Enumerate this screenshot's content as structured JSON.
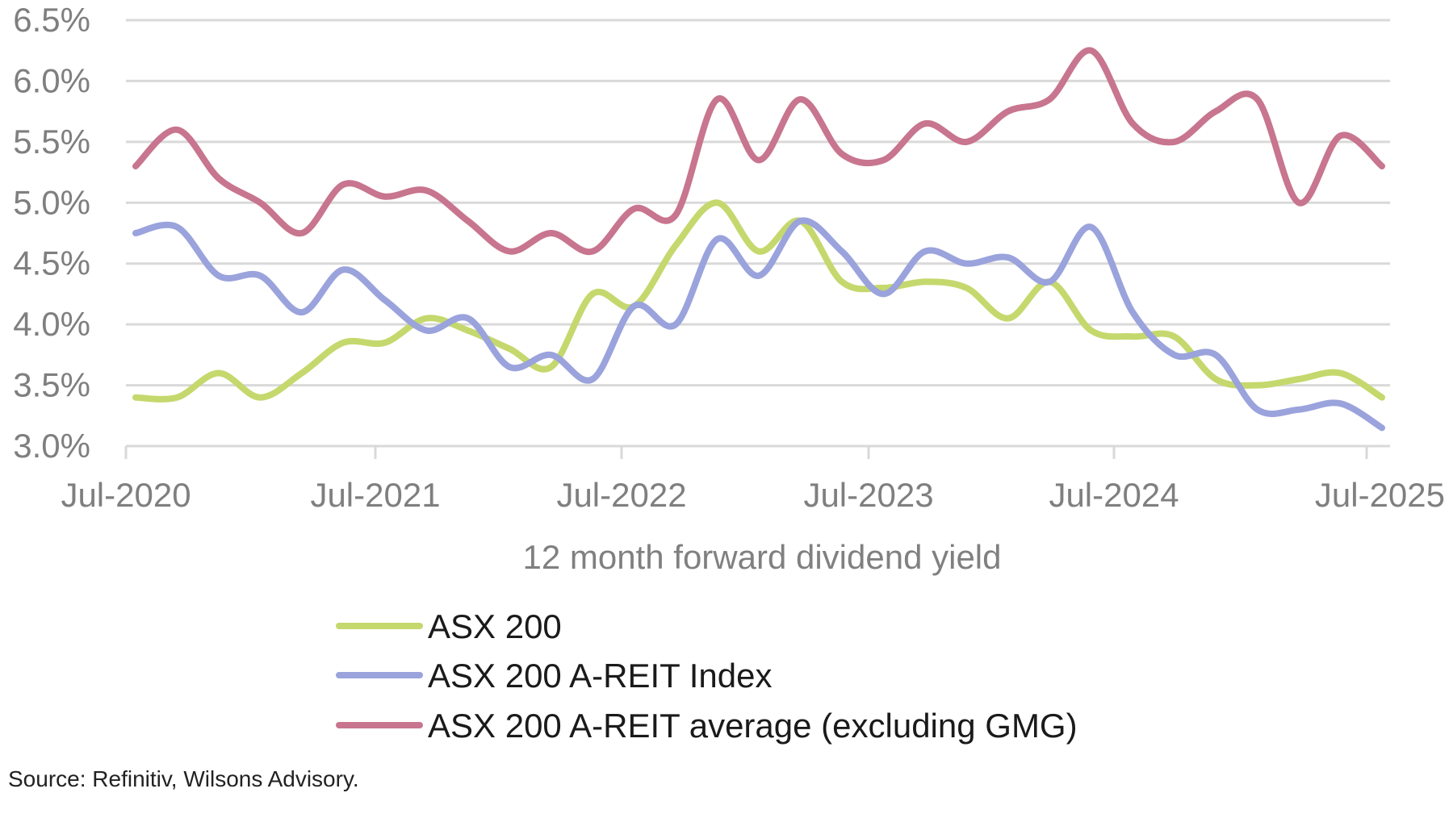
{
  "chart_data": {
    "type": "line",
    "xlabel": "12 month forward dividend yield",
    "ylabel": "",
    "ylim": [
      3.0,
      6.5
    ],
    "y_ticks": [
      {
        "value": 3.0,
        "label": "3.0%"
      },
      {
        "value": 3.5,
        "label": "3.5%"
      },
      {
        "value": 4.0,
        "label": "4.0%"
      },
      {
        "value": 4.5,
        "label": "4.5%"
      },
      {
        "value": 5.0,
        "label": "5.0%"
      },
      {
        "value": 5.5,
        "label": "5.5%"
      },
      {
        "value": 6.0,
        "label": "6.0%"
      },
      {
        "value": 6.5,
        "label": "6.5%"
      }
    ],
    "x_ticks": [
      "Jul-2020",
      "Jul-2021",
      "Jul-2022",
      "Jul-2023",
      "Jul-2024",
      "Jul-2025"
    ],
    "grid": true,
    "legend_position": "bottom",
    "source": "Source: Refinitiv, Wilsons Advisory.",
    "x": [
      "Jul-2020",
      "Sep-2020",
      "Nov-2020",
      "Jan-2021",
      "Mar-2021",
      "May-2021",
      "Jul-2021",
      "Sep-2021",
      "Nov-2021",
      "Jan-2022",
      "Mar-2022",
      "May-2022",
      "Jul-2022",
      "Sep-2022",
      "Nov-2022",
      "Jan-2023",
      "Mar-2023",
      "May-2023",
      "Jul-2023",
      "Sep-2023",
      "Nov-2023",
      "Jan-2024",
      "Mar-2024",
      "May-2024",
      "Jul-2024",
      "Sep-2024",
      "Nov-2024",
      "Jan-2025",
      "Mar-2025",
      "May-2025",
      "Jul-2025"
    ],
    "series": [
      {
        "name": "ASX 200",
        "color": "#c5d86d",
        "values": [
          3.4,
          3.4,
          3.6,
          3.4,
          3.6,
          3.85,
          3.85,
          4.05,
          3.95,
          3.8,
          3.65,
          4.25,
          4.15,
          4.65,
          5.0,
          4.6,
          4.85,
          4.35,
          4.3,
          4.35,
          4.3,
          4.05,
          4.35,
          3.95,
          3.9,
          3.9,
          3.55,
          3.5,
          3.55,
          3.6,
          3.4
        ]
      },
      {
        "name": "ASX 200 A-REIT Index",
        "color": "#9aa3dc",
        "values": [
          4.75,
          4.8,
          4.4,
          4.4,
          4.1,
          4.45,
          4.2,
          3.95,
          4.05,
          3.65,
          3.75,
          3.55,
          4.15,
          4.0,
          4.7,
          4.4,
          4.85,
          4.6,
          4.25,
          4.6,
          4.5,
          4.55,
          4.35,
          4.8,
          4.1,
          3.75,
          3.75,
          3.3,
          3.3,
          3.35,
          3.15
        ]
      },
      {
        "name": "ASX 200 A-REIT average (excluding GMG)",
        "color": "#c8758f",
        "values": [
          5.3,
          5.6,
          5.2,
          5.0,
          4.75,
          5.15,
          5.05,
          5.1,
          4.85,
          4.6,
          4.75,
          4.6,
          4.95,
          4.9,
          5.85,
          5.35,
          5.85,
          5.4,
          5.35,
          5.65,
          5.5,
          5.75,
          5.85,
          6.25,
          5.65,
          5.5,
          5.75,
          5.85,
          5.0,
          5.55,
          5.3
        ]
      }
    ]
  }
}
